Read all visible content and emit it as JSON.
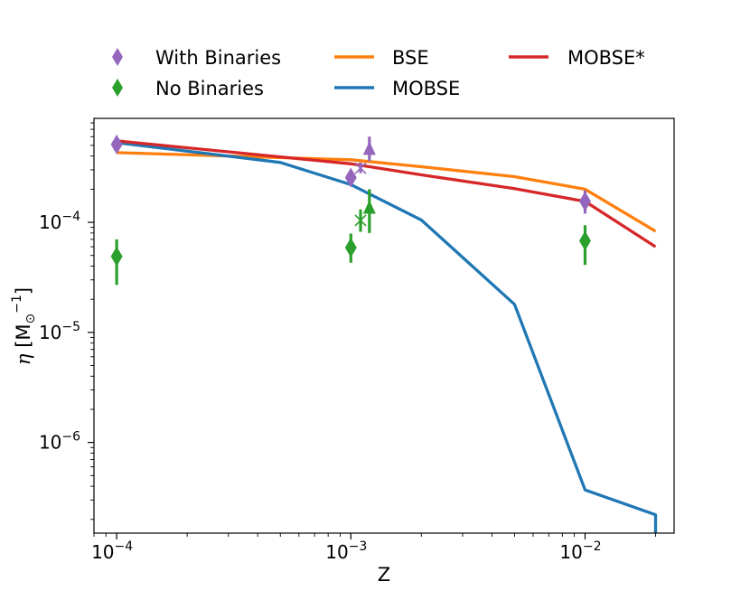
{
  "chart_data": {
    "type": "line",
    "xscale": "log",
    "yscale": "log",
    "xlabel": "Z",
    "ylabel": "η [M⊙⁻¹]",
    "xlim": [
      8e-05,
      0.024
    ],
    "ylim": [
      1.5e-07,
      0.00088
    ],
    "x_ticks": [
      {
        "value": 0.0001,
        "base": "10",
        "exp": "−4"
      },
      {
        "value": 0.001,
        "base": "10",
        "exp": "−3"
      },
      {
        "value": 0.01,
        "base": "10",
        "exp": "−2"
      }
    ],
    "y_ticks": [
      {
        "value": 1e-06,
        "base": "10",
        "exp": "−6"
      },
      {
        "value": 1e-05,
        "base": "10",
        "exp": "−5"
      },
      {
        "value": 0.0001,
        "base": "10",
        "exp": "−4"
      }
    ],
    "series": [
      {
        "name": "BSE",
        "kind": "line",
        "color": "#ff7f0e",
        "x": [
          0.0001,
          0.001,
          0.002,
          0.005,
          0.01,
          0.02
        ],
        "y": [
          0.00043,
          0.00037,
          0.00032,
          0.00026,
          0.0002,
          8.3e-05
        ]
      },
      {
        "name": "MOBSE",
        "kind": "line",
        "color": "#1f77b4",
        "x": [
          0.0001,
          0.0005,
          0.001,
          0.002,
          0.005,
          0.01,
          0.02,
          0.02
        ],
        "y": [
          0.00053,
          0.00035,
          0.00022,
          0.000105,
          1.8e-05,
          3.7e-07,
          2.2e-07,
          1.5e-07
        ]
      },
      {
        "name": "MOBSE*",
        "kind": "line",
        "color": "#d62728",
        "x": [
          0.0001,
          0.001,
          0.002,
          0.005,
          0.01,
          0.02
        ],
        "y": [
          0.00055,
          0.00034,
          0.00027,
          0.000202,
          0.000155,
          6e-05
        ]
      },
      {
        "name": "With Binaries",
        "kind": "errorbar",
        "marker": "diamond",
        "color": "#9467bd",
        "points": [
          {
            "x": 0.0001,
            "y": 0.00051,
            "lo": 0.00045,
            "hi": 0.00058
          },
          {
            "x": 0.001,
            "y": 0.000255,
            "lo": 0.000225,
            "hi": 0.00029
          },
          {
            "x": 0.0011,
            "y": 0.00031,
            "lo": 0.00028,
            "hi": 0.00035,
            "marker": "x"
          },
          {
            "x": 0.0012,
            "y": 0.00046,
            "lo": 0.00036,
            "hi": 0.0006,
            "marker": "triangle"
          },
          {
            "x": 0.01,
            "y": 0.000155,
            "lo": 0.00012,
            "hi": 0.000195
          }
        ]
      },
      {
        "name": "No Binaries",
        "kind": "errorbar",
        "marker": "diamond",
        "color": "#2ca02c",
        "points": [
          {
            "x": 0.0001,
            "y": 4.9e-05,
            "lo": 2.7e-05,
            "hi": 7e-05
          },
          {
            "x": 0.001,
            "y": 5.9e-05,
            "lo": 4.3e-05,
            "hi": 7.9e-05
          },
          {
            "x": 0.0011,
            "y": 0.000104,
            "lo": 8.2e-05,
            "hi": 0.000131,
            "marker": "x"
          },
          {
            "x": 0.0012,
            "y": 0.000134,
            "lo": 8e-05,
            "hi": 0.0002,
            "marker": "triangle"
          },
          {
            "x": 0.01,
            "y": 6.8e-05,
            "lo": 4.1e-05,
            "hi": 9.4e-05
          }
        ]
      }
    ],
    "legend": {
      "placement": "top",
      "entries": [
        {
          "label": "With Binaries",
          "kind": "marker",
          "color": "#9467bd"
        },
        {
          "label": "BSE",
          "kind": "line",
          "color": "#ff7f0e"
        },
        {
          "label": "MOBSE*",
          "kind": "line",
          "color": "#d62728"
        },
        {
          "label": "No Binaries",
          "kind": "marker",
          "color": "#2ca02c"
        },
        {
          "label": "MOBSE",
          "kind": "line",
          "color": "#1f77b4"
        }
      ]
    }
  }
}
